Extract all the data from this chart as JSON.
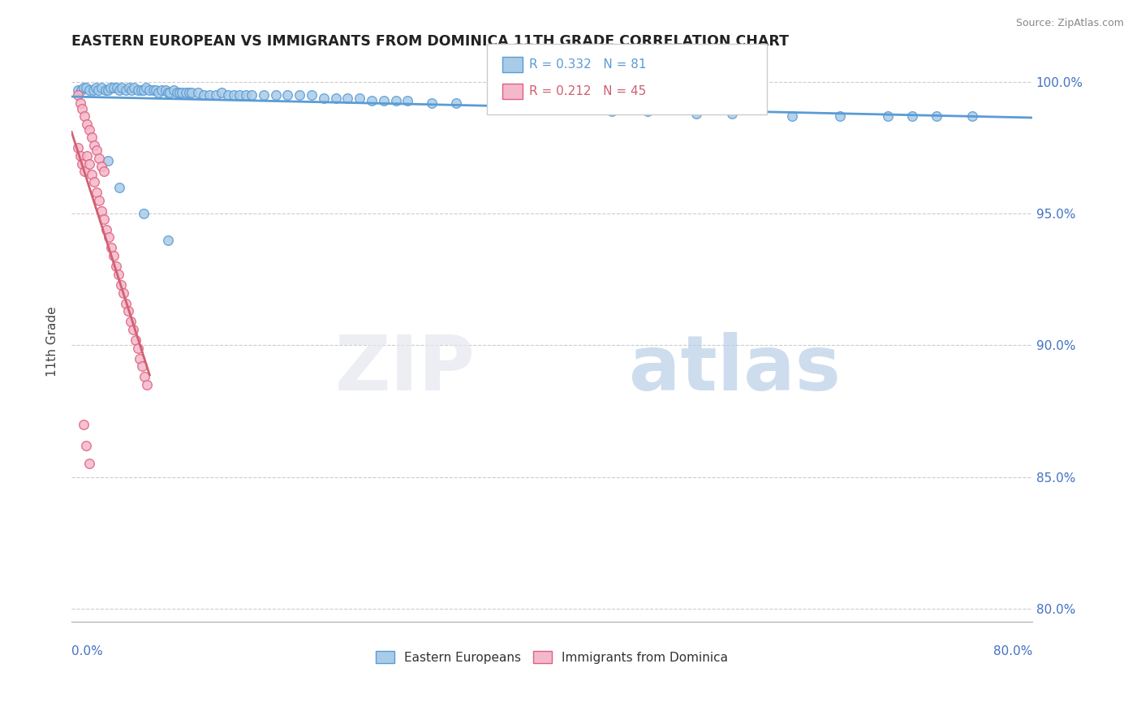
{
  "title": "EASTERN EUROPEAN VS IMMIGRANTS FROM DOMINICA 11TH GRADE CORRELATION CHART",
  "source": "Source: ZipAtlas.com",
  "ylabel": "11th Grade",
  "yaxis_ticks": [
    "100.0%",
    "95.0%",
    "90.0%",
    "85.0%",
    "80.0%"
  ],
  "yaxis_values": [
    1.0,
    0.95,
    0.9,
    0.85,
    0.8
  ],
  "xlim": [
    0.0,
    0.8
  ],
  "ylim": [
    0.795,
    1.008
  ],
  "legend1_label": "R = 0.332   N = 81",
  "legend2_label": "R = 0.212   N = 45",
  "blue_color": "#a8cce8",
  "blue_edge_color": "#5b9bd5",
  "pink_color": "#f4b8cb",
  "pink_edge_color": "#e06080",
  "blue_line_color": "#5b9bd5",
  "pink_line_color": "#d06070",
  "blue_scatter_x": [
    0.005,
    0.008,
    0.01,
    0.012,
    0.015,
    0.018,
    0.02,
    0.022,
    0.025,
    0.028,
    0.03,
    0.032,
    0.035,
    0.038,
    0.04,
    0.042,
    0.045,
    0.048,
    0.05,
    0.052,
    0.055,
    0.058,
    0.06,
    0.062,
    0.065,
    0.068,
    0.07,
    0.072,
    0.075,
    0.078,
    0.08,
    0.082,
    0.085,
    0.088,
    0.09,
    0.092,
    0.095,
    0.098,
    0.1,
    0.105,
    0.11,
    0.115,
    0.12,
    0.125,
    0.13,
    0.135,
    0.14,
    0.145,
    0.15,
    0.16,
    0.17,
    0.18,
    0.19,
    0.2,
    0.21,
    0.22,
    0.23,
    0.24,
    0.25,
    0.26,
    0.27,
    0.28,
    0.3,
    0.32,
    0.35,
    0.38,
    0.42,
    0.45,
    0.48,
    0.52,
    0.55,
    0.6,
    0.64,
    0.68,
    0.7,
    0.72,
    0.75,
    0.03,
    0.04,
    0.06,
    0.08
  ],
  "blue_scatter_y": [
    0.997,
    0.997,
    0.998,
    0.998,
    0.997,
    0.997,
    0.998,
    0.997,
    0.998,
    0.997,
    0.997,
    0.998,
    0.998,
    0.998,
    0.997,
    0.998,
    0.997,
    0.998,
    0.997,
    0.998,
    0.997,
    0.997,
    0.997,
    0.998,
    0.997,
    0.997,
    0.997,
    0.996,
    0.997,
    0.997,
    0.996,
    0.996,
    0.997,
    0.996,
    0.996,
    0.996,
    0.996,
    0.996,
    0.996,
    0.996,
    0.995,
    0.995,
    0.995,
    0.996,
    0.995,
    0.995,
    0.995,
    0.995,
    0.995,
    0.995,
    0.995,
    0.995,
    0.995,
    0.995,
    0.994,
    0.994,
    0.994,
    0.994,
    0.993,
    0.993,
    0.993,
    0.993,
    0.992,
    0.992,
    0.991,
    0.99,
    0.99,
    0.989,
    0.989,
    0.988,
    0.988,
    0.987,
    0.987,
    0.987,
    0.987,
    0.987,
    0.987,
    0.97,
    0.96,
    0.95,
    0.94
  ],
  "pink_scatter_x": [
    0.005,
    0.007,
    0.009,
    0.011,
    0.013,
    0.015,
    0.017,
    0.019,
    0.021,
    0.023,
    0.025,
    0.027,
    0.029,
    0.031,
    0.033,
    0.035,
    0.037,
    0.039,
    0.041,
    0.043,
    0.045,
    0.047,
    0.049,
    0.051,
    0.053,
    0.055,
    0.057,
    0.059,
    0.061,
    0.063,
    0.005,
    0.007,
    0.009,
    0.011,
    0.013,
    0.015,
    0.017,
    0.019,
    0.021,
    0.023,
    0.025,
    0.027,
    0.01,
    0.012,
    0.015
  ],
  "pink_scatter_y": [
    0.975,
    0.972,
    0.969,
    0.966,
    0.972,
    0.969,
    0.965,
    0.962,
    0.958,
    0.955,
    0.951,
    0.948,
    0.944,
    0.941,
    0.937,
    0.934,
    0.93,
    0.927,
    0.923,
    0.92,
    0.916,
    0.913,
    0.909,
    0.906,
    0.902,
    0.899,
    0.895,
    0.892,
    0.888,
    0.885,
    0.995,
    0.992,
    0.99,
    0.987,
    0.984,
    0.982,
    0.979,
    0.976,
    0.974,
    0.971,
    0.968,
    0.966,
    0.87,
    0.862,
    0.855
  ]
}
